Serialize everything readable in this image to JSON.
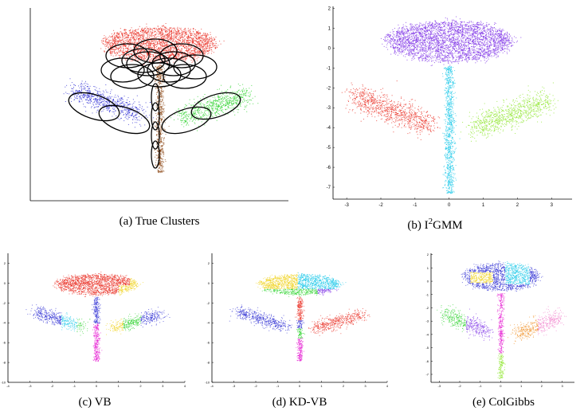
{
  "captions": {
    "a": "(a) True Clusters",
    "b_prefix": "(b) I",
    "b_sup": "2",
    "b_suffix": "GMM",
    "c": "(c) VB",
    "d": "(d) KD-VB",
    "e": "(e) ColGibbs"
  },
  "colors": {
    "red": "#e8281e",
    "blue": "#2828d2",
    "green": "#28d228",
    "brown": "#8b4513",
    "purple": "#7b2de6",
    "cyan": "#1ec8e8",
    "yellow": "#f0d21e",
    "magenta": "#e61ed2",
    "orange": "#f08c1e",
    "light_green": "#8ce628",
    "pink": "#f078c8"
  },
  "chart_data": [
    {
      "id": "a",
      "type": "scatter",
      "title": "(a) True Clusters",
      "axes": "left-and-bottom lines only, no ticks",
      "clusters": [
        {
          "color": "red",
          "region": "flower head",
          "ellipses": 12
        },
        {
          "color": "blue",
          "region": "left leaf",
          "ellipses": 2
        },
        {
          "color": "green",
          "region": "right leaf",
          "ellipses": 2
        },
        {
          "color": "brown",
          "region": "stem",
          "ellipses": 4
        }
      ]
    },
    {
      "id": "b",
      "type": "scatter",
      "title": "(b) I2GMM",
      "xlim": [
        -3.4,
        3.6
      ],
      "ylim": [
        -7.6,
        2.1
      ],
      "xticks": [
        -3,
        -2,
        -1,
        0,
        1,
        2,
        3
      ],
      "yticks": [
        2,
        1,
        0,
        -1,
        -2,
        -3,
        -4,
        -5,
        -6,
        -7
      ],
      "clusters": [
        {
          "color": "purple",
          "region": "flower head"
        },
        {
          "color": "red",
          "region": "left leaf"
        },
        {
          "color": "light_green",
          "region": "right leaf"
        },
        {
          "color": "cyan",
          "region": "stem"
        }
      ]
    },
    {
      "id": "c",
      "type": "scatter",
      "title": "(c) VB",
      "xlim": [
        -4,
        4
      ],
      "ylim": [
        -10,
        3
      ],
      "xticks": [
        -4,
        -3,
        -2,
        -1,
        0,
        1,
        2,
        3,
        4
      ],
      "yticks": [
        2,
        0,
        -2,
        -4,
        -6,
        -8,
        -10
      ],
      "clusters": [
        {
          "color": "red",
          "region": "flower head"
        },
        {
          "color": "yellow",
          "region": "flower head right"
        },
        {
          "color": "blue",
          "region": "stem and leaves"
        },
        {
          "color": "green",
          "region": "leaves"
        },
        {
          "color": "magenta",
          "region": "lower stem"
        }
      ]
    },
    {
      "id": "d",
      "type": "scatter",
      "title": "(d) KD-VB",
      "xlim": [
        -4,
        4
      ],
      "ylim": [
        -10,
        3
      ],
      "xticks": [
        -4,
        -3,
        -2,
        -1,
        0,
        1,
        2,
        3,
        4
      ],
      "yticks": [
        2,
        0,
        -2,
        -4,
        -6,
        -8,
        -10
      ],
      "clusters": [
        {
          "color": "yellow",
          "region": "flower head left"
        },
        {
          "color": "cyan",
          "region": "flower head right"
        },
        {
          "color": "purple",
          "region": "flower head right lower"
        },
        {
          "color": "green",
          "region": "flower head bottom and stem"
        },
        {
          "color": "blue",
          "region": "left leaf"
        },
        {
          "color": "red",
          "region": "right leaf and stem top"
        },
        {
          "color": "magenta",
          "region": "lower stem"
        }
      ]
    },
    {
      "id": "e",
      "type": "scatter",
      "title": "(e) ColGibbs",
      "xlim": [
        -3.4,
        3.6
      ],
      "ylim": [
        -7.6,
        2.1
      ],
      "xticks": [
        -3,
        -2,
        -1,
        0,
        1,
        2,
        3
      ],
      "yticks": [
        2,
        1,
        0,
        -1,
        -2,
        -3,
        -4,
        -5,
        -6,
        -7
      ],
      "clusters": [
        {
          "color": "blue",
          "region": "flower head"
        },
        {
          "color": "yellow",
          "region": "flower head left"
        },
        {
          "color": "cyan",
          "region": "flower head right"
        },
        {
          "color": "green",
          "region": "left leaf"
        },
        {
          "color": "orange",
          "region": "right leaf"
        },
        {
          "color": "magenta",
          "region": "stem"
        },
        {
          "color": "light_green",
          "region": "stem bottom"
        }
      ]
    }
  ]
}
